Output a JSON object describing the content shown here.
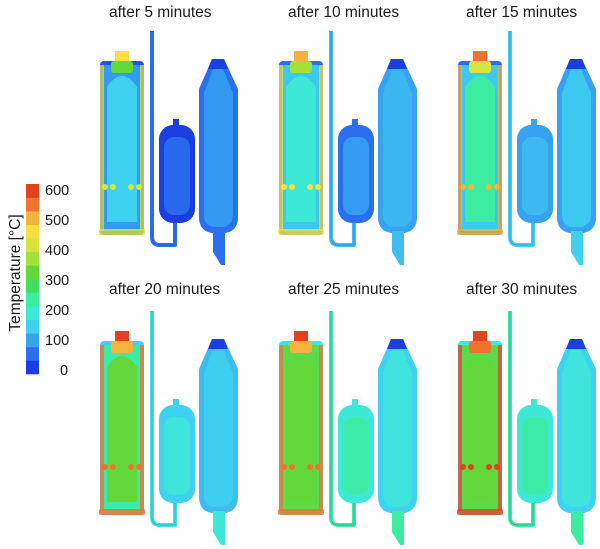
{
  "colorbar": {
    "title": "Temperature [°C]",
    "ticks": [
      "600",
      "500",
      "400",
      "300",
      "200",
      "100",
      "0"
    ],
    "range": [
      0,
      600
    ],
    "colors": [
      "#1a3ee0",
      "#2a70ee",
      "#36a2f0",
      "#3ed2f0",
      "#3ee8d6",
      "#3ceca0",
      "#3ee060",
      "#62d83a",
      "#a2e03a",
      "#d8e43e",
      "#f5e03e",
      "#f5b23c",
      "#f1722c",
      "#e2421c"
    ]
  },
  "panels": [
    {
      "title": "after 5 minutes",
      "minutes": 5
    },
    {
      "title": "after 10 minutes",
      "minutes": 10
    },
    {
      "title": "after 15 minutes",
      "minutes": 15
    },
    {
      "title": "after 20 minutes",
      "minutes": 20
    },
    {
      "title": "after 25 minutes",
      "minutes": 25
    },
    {
      "title": "after 30 minutes",
      "minutes": 30
    }
  ]
}
